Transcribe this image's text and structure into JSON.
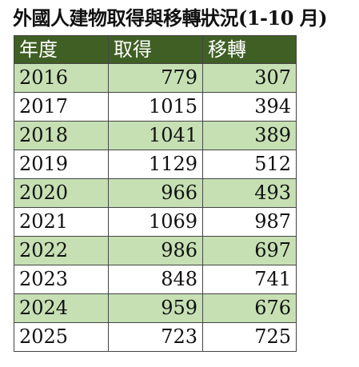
{
  "title": "外國人建物取得與移轉狀況(1-10 月)",
  "table": {
    "headers": [
      "年度",
      "取得",
      "移轉"
    ],
    "rows": [
      {
        "year": "2016",
        "acquired": "779",
        "transferred": "307"
      },
      {
        "year": "2017",
        "acquired": "1015",
        "transferred": "394"
      },
      {
        "year": "2018",
        "acquired": "1041",
        "transferred": "389"
      },
      {
        "year": "2019",
        "acquired": "1129",
        "transferred": "512"
      },
      {
        "year": "2020",
        "acquired": "966",
        "transferred": "493"
      },
      {
        "year": "2021",
        "acquired": "1069",
        "transferred": "987"
      },
      {
        "year": "2022",
        "acquired": "986",
        "transferred": "697"
      },
      {
        "year": "2023",
        "acquired": "848",
        "transferred": "741"
      },
      {
        "year": "2024",
        "acquired": "959",
        "transferred": "676"
      },
      {
        "year": "2025",
        "acquired": "723",
        "transferred": "725"
      }
    ]
  },
  "colors": {
    "header_bg": "#3f5f24",
    "header_text": "#ffffff",
    "band_bg": "#c6e0b3",
    "border": "#444444"
  }
}
